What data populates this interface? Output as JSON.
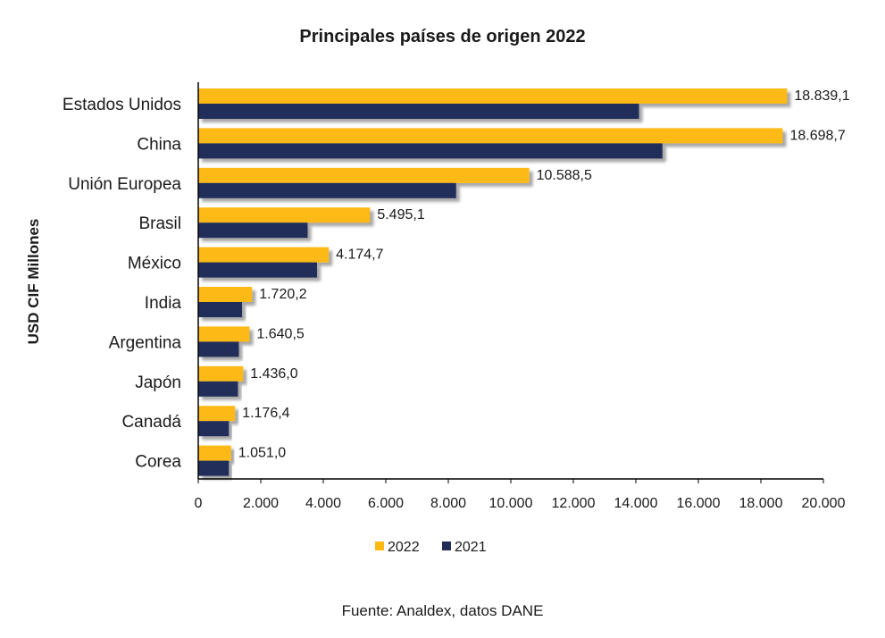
{
  "chart_data": {
    "type": "bar",
    "orientation": "horizontal",
    "title": "Principales países de origen 2022",
    "ylabel": "USD CIF Millones",
    "xlabel": "",
    "source": "Fuente: Analdex, datos DANE",
    "categories": [
      "Estados Unidos",
      "China",
      "Unión Europea",
      "Brasil",
      "México",
      "India",
      "Argentina",
      "Japón",
      "Canadá",
      "Corea"
    ],
    "series": [
      {
        "name": "2022",
        "color": "#FDB913",
        "values": [
          18839.1,
          18698.7,
          10588.5,
          5495.1,
          4174.7,
          1720.2,
          1640.5,
          1436.0,
          1176.4,
          1051.0
        ],
        "labels": [
          "18.839,1",
          "18.698,7",
          "10.588,5",
          "5.495,1",
          "4.174,7",
          "1.720,2",
          "1.640,5",
          "1.436,0",
          "1.176,4",
          "1.051,0"
        ]
      },
      {
        "name": "2021",
        "color": "#232D5A",
        "values": [
          14100,
          14850,
          8250,
          3500,
          3800,
          1400,
          1300,
          1270,
          980,
          980
        ]
      }
    ],
    "xlim": [
      0,
      20000
    ],
    "xticks": [
      0,
      2000,
      4000,
      6000,
      8000,
      10000,
      12000,
      14000,
      16000,
      18000,
      20000
    ],
    "xtick_labels": [
      "0",
      "2.000",
      "4.000",
      "6.000",
      "8.000",
      "10.000",
      "12.000",
      "14.000",
      "16.000",
      "18.000",
      "20.000"
    ],
    "grid": false,
    "legend": "bottom"
  }
}
